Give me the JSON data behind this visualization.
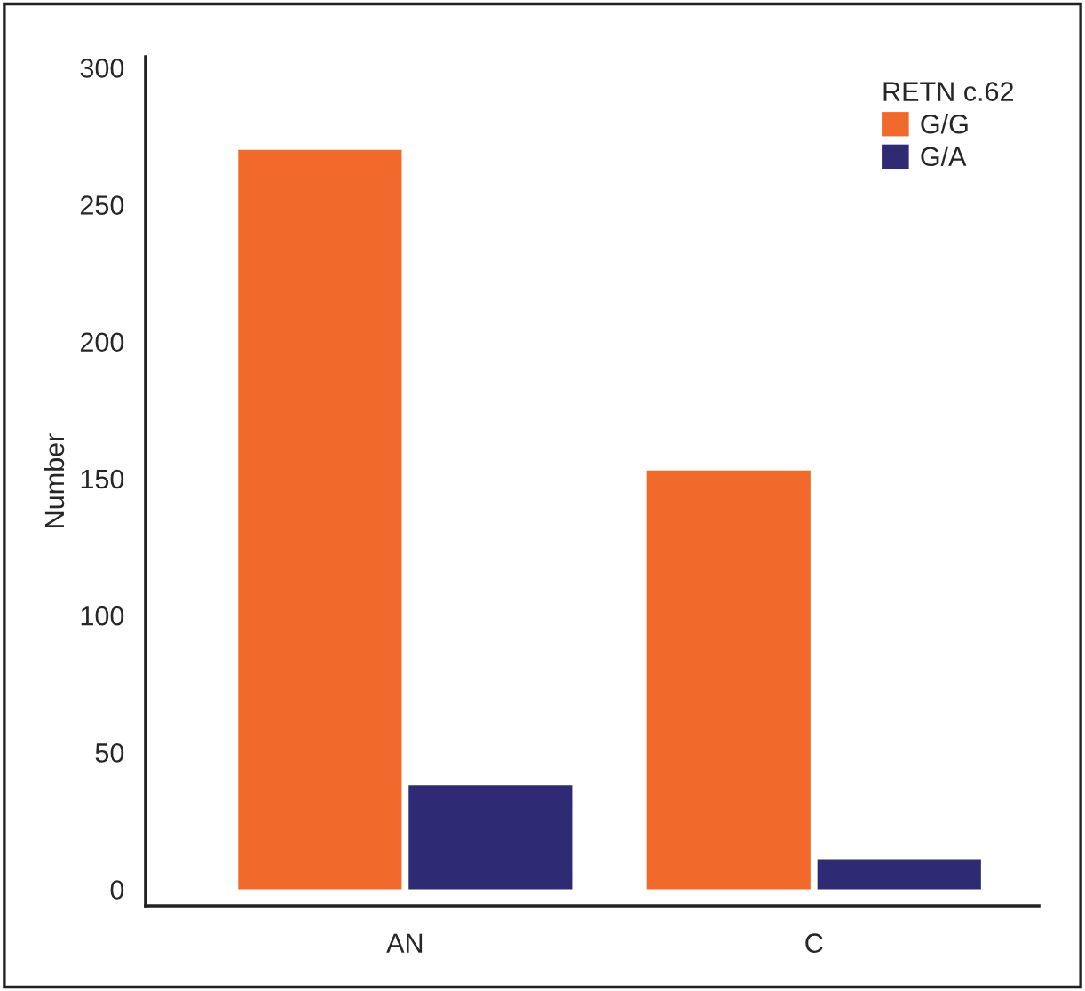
{
  "chart_data": {
    "type": "bar",
    "ylabel": "Number",
    "legend_title": "RETN c.62",
    "categories": [
      "AN",
      "C"
    ],
    "series": [
      {
        "name": "G/G",
        "color": "#f26a2b",
        "values": [
          270,
          153
        ]
      },
      {
        "name": "G/A",
        "color": "#2e2a74",
        "values": [
          38,
          11
        ]
      }
    ],
    "ylim": [
      -6,
      304
    ],
    "yticks": [
      0,
      50,
      100,
      150,
      200,
      250,
      300
    ],
    "grid": false,
    "legend": "top right"
  }
}
